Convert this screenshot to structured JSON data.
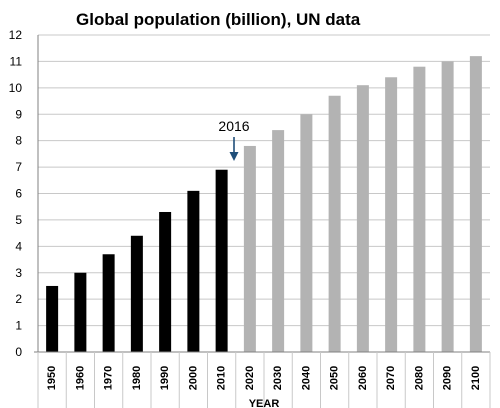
{
  "chart_data": {
    "type": "bar",
    "title": "Global population (billion), UN data",
    "xlabel": "YEAR",
    "ylabel": "",
    "ylim": [
      0,
      12
    ],
    "yticks": [
      "0",
      "1",
      "2",
      "3",
      "4",
      "5",
      "6",
      "7",
      "8",
      "9",
      "10",
      "11",
      "12"
    ],
    "grid": true,
    "categories": [
      "1950",
      "1960",
      "1970",
      "1980",
      "1990",
      "2000",
      "2010",
      "2020",
      "2030",
      "2040",
      "2050",
      "2060",
      "2070",
      "2080",
      "2090",
      "2100"
    ],
    "values": [
      2.5,
      3.0,
      3.7,
      4.4,
      5.3,
      6.1,
      6.9,
      7.8,
      8.4,
      9.0,
      9.7,
      10.1,
      10.4,
      10.8,
      11.0,
      11.2
    ],
    "bar_colors": [
      "#000000",
      "#000000",
      "#000000",
      "#000000",
      "#000000",
      "#000000",
      "#000000",
      "#b3b3b3",
      "#b3b3b3",
      "#b3b3b3",
      "#b3b3b3",
      "#b3b3b3",
      "#b3b3b3",
      "#b3b3b3",
      "#b3b3b3",
      "#b3b3b3"
    ],
    "annotation": {
      "text": "2016",
      "arrow_color": "#1f4e79"
    }
  }
}
